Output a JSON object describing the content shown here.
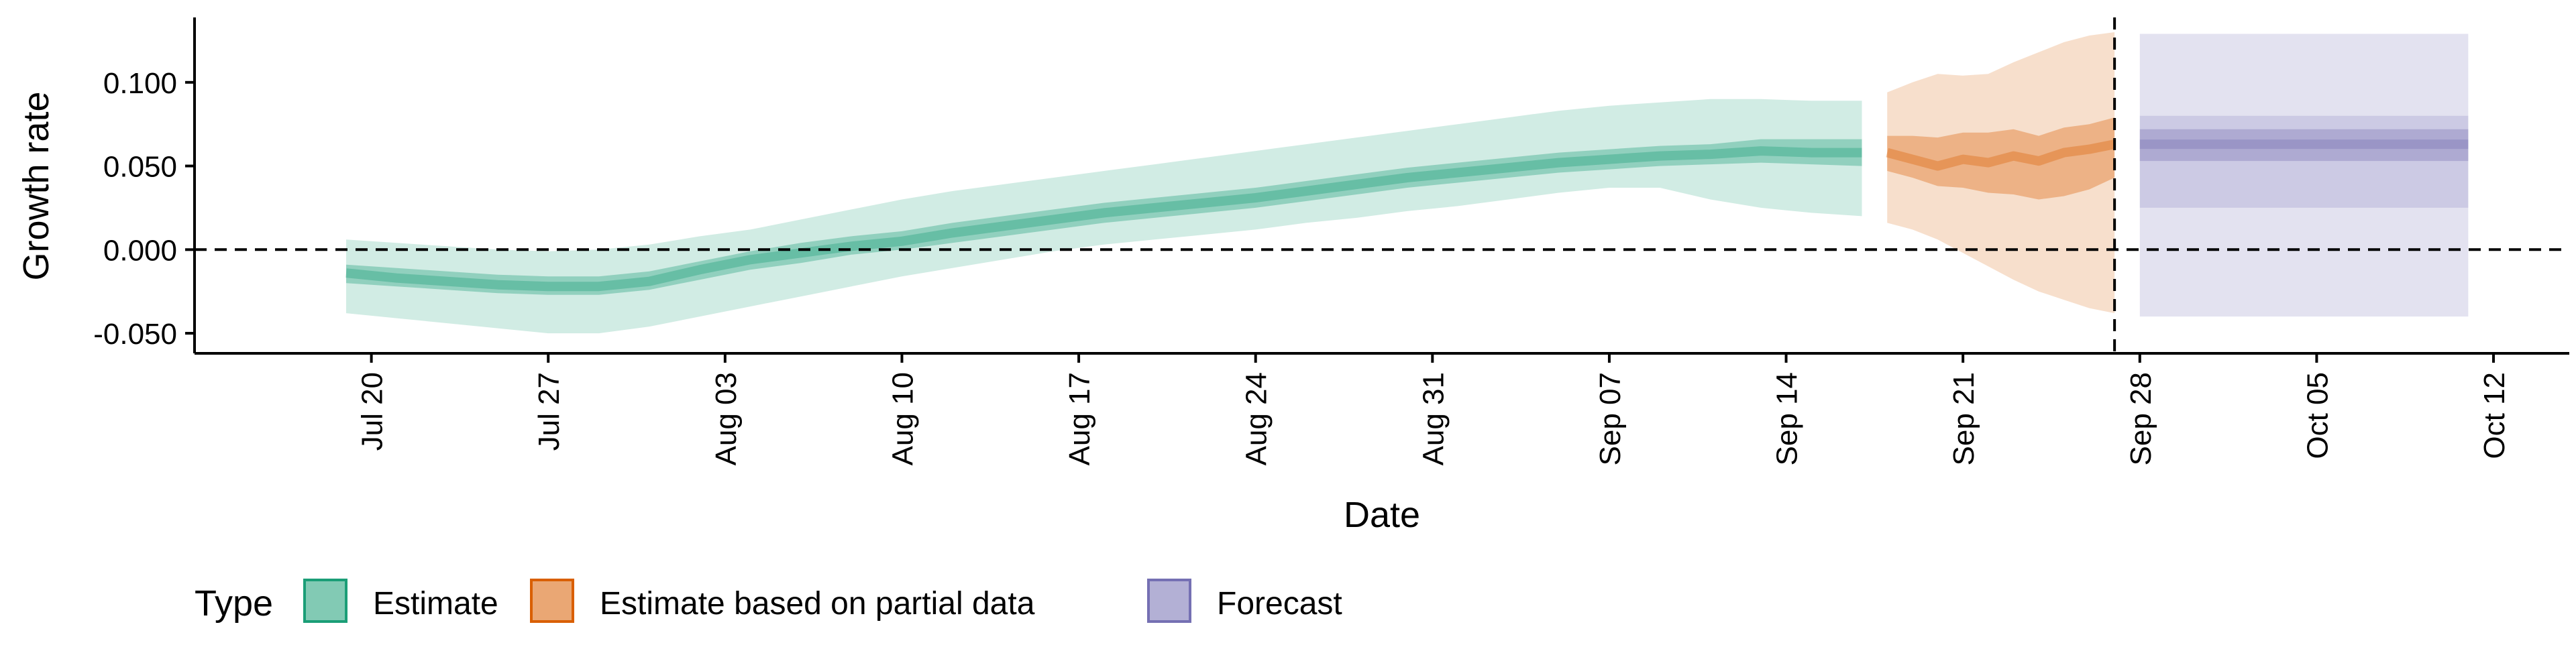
{
  "chart_data": {
    "type": "area",
    "xlabel": "Date",
    "ylabel": "Growth rate",
    "x_tick_labels": [
      "Jul 20",
      "Jul 27",
      "Aug 03",
      "Aug 10",
      "Aug 17",
      "Aug 24",
      "Aug 31",
      "Sep 07",
      "Sep 14",
      "Sep 21",
      "Sep 28",
      "Oct 05",
      "Oct 12"
    ],
    "x_tick_dates": [
      "2020-07-20",
      "2020-07-27",
      "2020-08-03",
      "2020-08-10",
      "2020-08-17",
      "2020-08-24",
      "2020-08-31",
      "2020-09-07",
      "2020-09-14",
      "2020-09-21",
      "2020-09-28",
      "2020-10-05",
      "2020-10-12"
    ],
    "xlim": [
      "2020-07-13",
      "2020-10-15"
    ],
    "y_tick_labels": [
      "-0.050",
      "0.000",
      "0.050",
      "0.100"
    ],
    "y_ticks": [
      -0.05,
      0.0,
      0.05,
      0.1
    ],
    "ylim": [
      -0.062,
      0.138
    ],
    "reference_hline": 0.0,
    "reference_vline": "2020-09-27",
    "grid": false,
    "legend": {
      "title": "Type",
      "position": "bottom-left",
      "entries": [
        {
          "label": "Estimate",
          "color": "#1b9e77"
        },
        {
          "label": "Estimate based on partial data",
          "color": "#d95f02"
        },
        {
          "label": "Forecast",
          "color": "#7570b3"
        }
      ]
    },
    "series": [
      {
        "name": "Estimate",
        "color": "#1b9e77",
        "x": [
          "2020-07-19",
          "2020-07-21",
          "2020-07-23",
          "2020-07-25",
          "2020-07-27",
          "2020-07-29",
          "2020-07-31",
          "2020-08-02",
          "2020-08-04",
          "2020-08-06",
          "2020-08-08",
          "2020-08-10",
          "2020-08-12",
          "2020-08-14",
          "2020-08-16",
          "2020-08-18",
          "2020-08-20",
          "2020-08-22",
          "2020-08-24",
          "2020-08-26",
          "2020-08-28",
          "2020-08-30",
          "2020-09-01",
          "2020-09-03",
          "2020-09-05",
          "2020-09-07",
          "2020-09-09",
          "2020-09-11",
          "2020-09-13",
          "2020-09-15",
          "2020-09-17"
        ],
        "median": [
          -0.014,
          -0.017,
          -0.019,
          -0.021,
          -0.022,
          -0.022,
          -0.019,
          -0.012,
          -0.006,
          -0.002,
          0.002,
          0.005,
          0.01,
          0.014,
          0.018,
          0.022,
          0.025,
          0.028,
          0.031,
          0.035,
          0.039,
          0.043,
          0.046,
          0.049,
          0.052,
          0.054,
          0.056,
          0.057,
          0.059,
          0.058,
          0.058
        ],
        "lower_50": [
          -0.02,
          -0.022,
          -0.024,
          -0.026,
          -0.027,
          -0.027,
          -0.024,
          -0.018,
          -0.012,
          -0.008,
          -0.003,
          0.0,
          0.004,
          0.008,
          0.012,
          0.016,
          0.019,
          0.022,
          0.025,
          0.029,
          0.033,
          0.037,
          0.04,
          0.043,
          0.046,
          0.048,
          0.05,
          0.051,
          0.052,
          0.051,
          0.05
        ],
        "upper_50": [
          -0.009,
          -0.011,
          -0.013,
          -0.015,
          -0.016,
          -0.016,
          -0.013,
          -0.007,
          -0.001,
          0.004,
          0.008,
          0.011,
          0.016,
          0.02,
          0.024,
          0.028,
          0.031,
          0.034,
          0.037,
          0.041,
          0.045,
          0.049,
          0.052,
          0.055,
          0.058,
          0.06,
          0.062,
          0.063,
          0.066,
          0.066,
          0.066
        ],
        "lower_90": [
          -0.038,
          -0.041,
          -0.044,
          -0.047,
          -0.05,
          -0.05,
          -0.046,
          -0.04,
          -0.034,
          -0.028,
          -0.022,
          -0.016,
          -0.011,
          -0.006,
          -0.001,
          0.003,
          0.006,
          0.009,
          0.012,
          0.016,
          0.019,
          0.023,
          0.026,
          0.03,
          0.034,
          0.037,
          0.037,
          0.03,
          0.025,
          0.022,
          0.02
        ],
        "upper_90": [
          0.006,
          0.004,
          0.002,
          0.0,
          -0.001,
          0.0,
          0.003,
          0.008,
          0.012,
          0.018,
          0.024,
          0.03,
          0.035,
          0.039,
          0.043,
          0.047,
          0.051,
          0.055,
          0.059,
          0.063,
          0.067,
          0.071,
          0.075,
          0.079,
          0.083,
          0.086,
          0.088,
          0.09,
          0.09,
          0.089,
          0.089
        ]
      },
      {
        "name": "Estimate based on partial data",
        "color": "#d95f02",
        "x": [
          "2020-09-18",
          "2020-09-19",
          "2020-09-20",
          "2020-09-21",
          "2020-09-22",
          "2020-09-23",
          "2020-09-24",
          "2020-09-25",
          "2020-09-26",
          "2020-09-27"
        ],
        "median": [
          0.058,
          0.054,
          0.05,
          0.054,
          0.052,
          0.056,
          0.053,
          0.058,
          0.06,
          0.063
        ],
        "lower_50": [
          0.047,
          0.043,
          0.038,
          0.037,
          0.034,
          0.033,
          0.03,
          0.032,
          0.036,
          0.043
        ],
        "upper_50": [
          0.068,
          0.068,
          0.067,
          0.07,
          0.07,
          0.072,
          0.068,
          0.073,
          0.075,
          0.079
        ],
        "lower_90": [
          0.016,
          0.012,
          0.006,
          -0.002,
          -0.01,
          -0.018,
          -0.025,
          -0.03,
          -0.035,
          -0.038
        ],
        "upper_90": [
          0.094,
          0.1,
          0.105,
          0.104,
          0.105,
          0.112,
          0.118,
          0.124,
          0.128,
          0.13
        ]
      },
      {
        "name": "Forecast",
        "color": "#7570b3",
        "x": [
          "2020-09-28",
          "2020-10-11"
        ],
        "median": [
          0.063,
          0.063
        ],
        "lower_50": [
          0.053,
          0.053
        ],
        "upper_50": [
          0.072,
          0.072
        ],
        "lower_90": [
          0.025,
          0.025
        ],
        "upper_90": [
          0.08,
          0.08
        ],
        "lower_outer": [
          -0.04,
          -0.04
        ],
        "upper_outer": [
          0.129,
          0.129
        ]
      }
    ]
  }
}
